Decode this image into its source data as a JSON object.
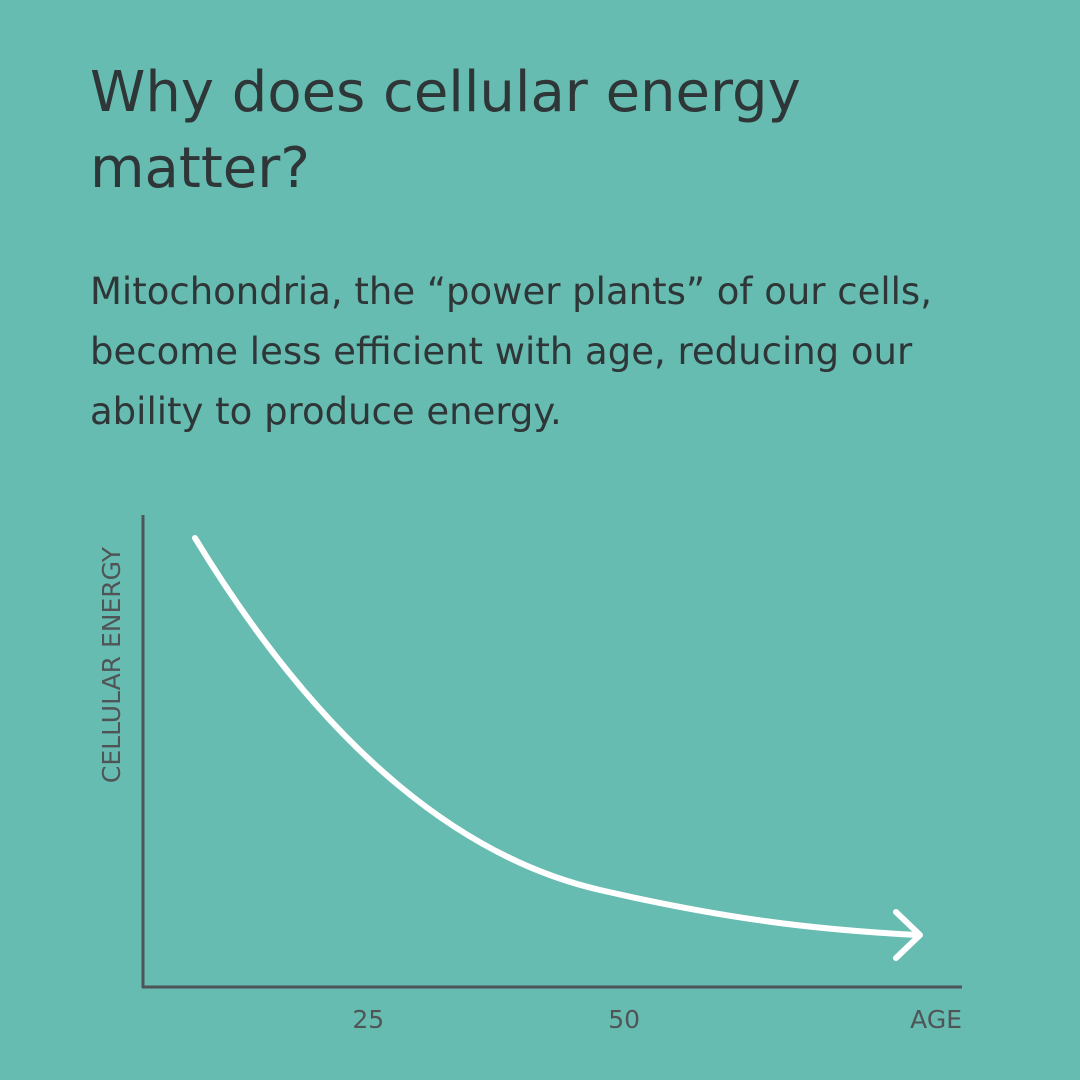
{
  "chart_data": {
    "type": "line",
    "title": "Why does cellular energy matter?",
    "subtitle": "Mitochondria, the “power plants” of our cells, become less efficient with age, reducing our ability to produce energy.",
    "ylabel": "CELLULAR ENERGY",
    "xlabel": "AGE",
    "xlim": [
      3,
      83
    ],
    "xticks": [
      25,
      50
    ]
  }
}
